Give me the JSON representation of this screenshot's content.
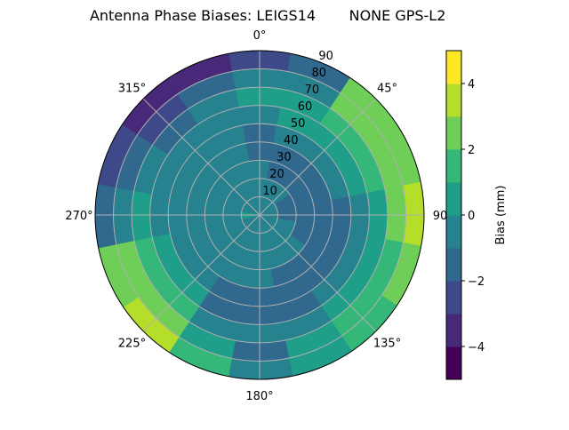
{
  "chart_data": {
    "type": "heatmap",
    "subtype": "polar-contourf",
    "title": "Antenna Phase Biases: LEIGS14",
    "title_right": "NONE GPS-L2",
    "angle_tick_labels": [
      "0°",
      "45°",
      "90",
      "135°",
      "180°",
      "225°",
      "270°",
      "315°"
    ],
    "angle_ticks": [
      0,
      45,
      90,
      135,
      180,
      225,
      270,
      315
    ],
    "angle_direction": "clockwise",
    "zero_location": "north",
    "radial_ticks": [
      10,
      20,
      30,
      40,
      50,
      60,
      70,
      80,
      90
    ],
    "radial_tick_labels": [
      "10",
      "20",
      "30",
      "40",
      "50",
      "60",
      "70",
      "80",
      "90"
    ],
    "rlim": [
      0,
      90
    ],
    "grid": true,
    "azimuths": [
      0,
      22.5,
      45,
      67.5,
      90,
      112.5,
      135,
      157.5,
      180,
      202.5,
      225,
      247.5,
      270,
      292.5,
      315,
      337.5
    ],
    "radii": [
      5,
      15,
      25,
      35,
      45,
      55,
      65,
      75,
      85
    ],
    "values": [
      [
        -0.5,
        -0.5,
        -0.5,
        -1.5,
        -1.5,
        -0.5,
        0.5,
        -0.5,
        -2.5
      ],
      [
        -0.5,
        -0.5,
        -1.5,
        -1.5,
        -0.5,
        0.5,
        0.5,
        -0.5,
        -1.5
      ],
      [
        -0.5,
        -0.5,
        -1.5,
        -1.5,
        -0.5,
        0.5,
        1.5,
        2.5,
        2.5
      ],
      [
        -0.5,
        -1.5,
        -1.5,
        -1.5,
        -0.5,
        0.5,
        1.5,
        2.5,
        2.5
      ],
      [
        -0.5,
        -1.5,
        -1.5,
        -1.5,
        -1.5,
        -0.5,
        0.5,
        2.5,
        3.5
      ],
      [
        -0.5,
        -0.5,
        -1.5,
        -1.5,
        -1.5,
        -0.5,
        0.5,
        1.5,
        2.5
      ],
      [
        -0.5,
        -0.5,
        -0.5,
        -1.5,
        -1.5,
        -0.5,
        0.5,
        1.5,
        1.5
      ],
      [
        -0.5,
        -0.5,
        -0.5,
        -1.5,
        -1.5,
        -1.5,
        -0.5,
        0.5,
        0.5
      ],
      [
        -0.5,
        -0.5,
        -0.5,
        -0.5,
        -1.5,
        -1.5,
        -0.5,
        -1.5,
        -0.5
      ],
      [
        -0.5,
        -0.5,
        -0.5,
        -0.5,
        -1.5,
        -1.5,
        -0.5,
        0.5,
        1.5
      ],
      [
        -0.5,
        -0.5,
        -0.5,
        -0.5,
        -0.5,
        0.5,
        1.5,
        2.5,
        3.5
      ],
      [
        -0.5,
        -0.5,
        -0.5,
        -0.5,
        -0.5,
        0.5,
        1.5,
        2.5,
        2.5
      ],
      [
        0.5,
        -0.5,
        -0.5,
        -0.5,
        -0.5,
        -0.5,
        0.5,
        -0.5,
        -1.5
      ],
      [
        -0.5,
        -0.5,
        -0.5,
        -0.5,
        -0.5,
        -0.5,
        -0.5,
        -1.5,
        -2.5
      ],
      [
        -0.5,
        -0.5,
        -0.5,
        -0.5,
        -0.5,
        -0.5,
        -1.5,
        -2.5,
        -3.5
      ],
      [
        -0.5,
        -0.5,
        -0.5,
        -0.5,
        -0.5,
        -0.5,
        -0.5,
        -1.5,
        -3.5
      ]
    ],
    "levels": [
      -5,
      -4,
      -3,
      -2,
      -1,
      0,
      1,
      2,
      3,
      4,
      5
    ],
    "colormap": [
      "#440154",
      "#482878",
      "#3e4989",
      "#31688e",
      "#26828e",
      "#1f9e89",
      "#35b779",
      "#6ece58",
      "#b5de2b",
      "#fde725"
    ],
    "colorbar": {
      "label": "Bias (mm)",
      "ticks": [
        -4,
        -2,
        0,
        2,
        4
      ],
      "tick_labels": [
        "−4",
        "−2",
        "0",
        "2",
        "4"
      ],
      "range": [
        -5,
        5
      ]
    }
  }
}
